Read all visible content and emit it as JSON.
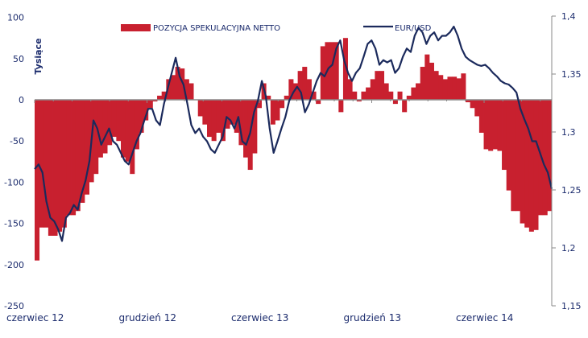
{
  "chart_data": {
    "type": "bar+line",
    "title": "",
    "ylabel": "Tysiące",
    "y2label": "",
    "xlabel": "",
    "x_tick_labels": [
      "czerwiec 12",
      "grudzień 12",
      "czerwiec 13",
      "grudzień 13",
      "czerwiec 14"
    ],
    "y_ticks": [
      "100",
      "50",
      "0",
      "-50",
      "-100",
      "-150",
      "-200",
      "-250"
    ],
    "y_tick_values": [
      100,
      50,
      0,
      -50,
      -100,
      -150,
      -200,
      -250
    ],
    "y2_ticks": [
      "1,4",
      "1,35",
      "1,3",
      "1,25",
      "1,2",
      "1,15"
    ],
    "y2_tick_values": [
      1.4,
      1.35,
      1.3,
      1.25,
      1.2,
      1.15
    ],
    "ylim": [
      -250,
      100
    ],
    "y2lim": [
      1.15,
      1.4
    ],
    "legend": [
      {
        "label": "POZYCJA SPEKULACYJNA NETTO",
        "type": "bar",
        "color": "#c8202f"
      },
      {
        "label": "EUR/USD",
        "type": "line",
        "color": "#1b2a5c"
      }
    ],
    "series": [
      {
        "name": "POZYCJA SPEKULACYJNA NETTO",
        "axis": "left",
        "frequency": "weekly",
        "values": [
          -195,
          -155,
          -155,
          -165,
          -165,
          -160,
          -155,
          -140,
          -140,
          -135,
          -125,
          -115,
          -100,
          -90,
          -70,
          -65,
          -55,
          -45,
          -50,
          -70,
          -75,
          -90,
          -60,
          -40,
          -25,
          -10,
          -2,
          5,
          10,
          25,
          30,
          40,
          38,
          25,
          20,
          0,
          -20,
          -30,
          -45,
          -50,
          -40,
          -50,
          -35,
          -30,
          -40,
          -55,
          -70,
          -85,
          -65,
          -10,
          20,
          5,
          -30,
          -25,
          -10,
          5,
          25,
          20,
          35,
          40,
          25,
          10,
          -5,
          65,
          70,
          70,
          70,
          -15,
          75,
          25,
          10,
          -2,
          10,
          15,
          25,
          35,
          35,
          20,
          10,
          -5,
          10,
          -15,
          5,
          15,
          20,
          40,
          55,
          45,
          35,
          30,
          25,
          28,
          28,
          26,
          32,
          -3,
          -10,
          -20,
          -40,
          -60,
          -62,
          -60,
          -62,
          -85,
          -110,
          -135,
          -135,
          -150,
          -155,
          -160,
          -158,
          -140,
          -140,
          -135
        ]
      },
      {
        "name": "EUR/USD",
        "axis": "right",
        "values": [
          1.268,
          1.272,
          1.265,
          1.24,
          1.226,
          1.223,
          1.216,
          1.206,
          1.226,
          1.23,
          1.237,
          1.233,
          1.247,
          1.258,
          1.275,
          1.31,
          1.303,
          1.289,
          1.296,
          1.303,
          1.292,
          1.289,
          1.282,
          1.275,
          1.272,
          1.282,
          1.292,
          1.299,
          1.31,
          1.32,
          1.32,
          1.31,
          1.306,
          1.324,
          1.338,
          1.351,
          1.364,
          1.348,
          1.341,
          1.324,
          1.306,
          1.299,
          1.303,
          1.296,
          1.292,
          1.285,
          1.282,
          1.289,
          1.296,
          1.313,
          1.31,
          1.303,
          1.313,
          1.292,
          1.289,
          1.299,
          1.317,
          1.327,
          1.344,
          1.331,
          1.303,
          1.282,
          1.292,
          1.303,
          1.313,
          1.327,
          1.334,
          1.339,
          1.334,
          1.317,
          1.324,
          1.334,
          1.344,
          1.351,
          1.348,
          1.355,
          1.358,
          1.372,
          1.379,
          1.362,
          1.351,
          1.344,
          1.351,
          1.355,
          1.365,
          1.376,
          1.379,
          1.372,
          1.358,
          1.362,
          1.36,
          1.362,
          1.351,
          1.355,
          1.365,
          1.372,
          1.369,
          1.383,
          1.39,
          1.386,
          1.376,
          1.383,
          1.386,
          1.379,
          1.383,
          1.383,
          1.386,
          1.391,
          1.383,
          1.372,
          1.365,
          1.362,
          1.36,
          1.358,
          1.357,
          1.358,
          1.355,
          1.351,
          1.348,
          1.344,
          1.342,
          1.341,
          1.338,
          1.334,
          1.32,
          1.311,
          1.303,
          1.292,
          1.292,
          1.282,
          1.272,
          1.265,
          1.251
        ]
      }
    ],
    "grid": false,
    "legend_placement": "top"
  }
}
